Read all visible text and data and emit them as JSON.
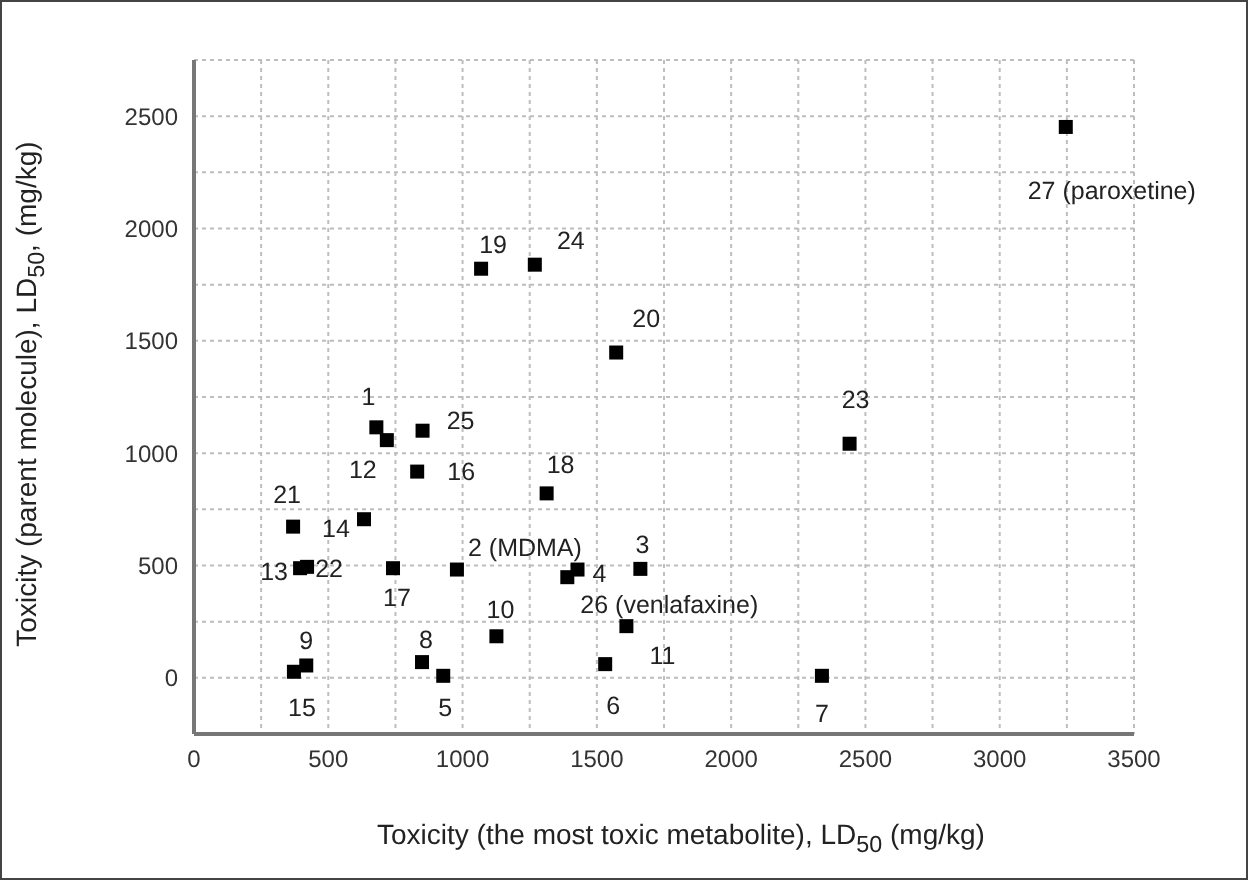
{
  "chart_data": {
    "type": "scatter",
    "xlabel": "Toxicity (the most toxic metabolite), LD$_{50}$ (mg/kg)",
    "ylabel": "Toxicity (parent molecule), LD$_{50}$, (mg/kg)",
    "x": [
      679,
      979,
      1662,
      1428,
      928,
      1531,
      2338,
      849,
      418,
      1126,
      1610,
      718,
      395,
      633,
      372,
      831,
      741,
      1313,
      1069,
      1572,
      369,
      421,
      2441,
      1269,
      851,
      1390,
      3246
    ],
    "series": [
      {
        "color": "#000000",
        "values": [
          1115,
          482,
          485,
          482,
          9,
          61,
          9,
          70,
          55,
          185,
          230,
          1058,
          488,
          706,
          27,
          918,
          488,
          821,
          1821,
          1448,
          673,
          494,
          1042,
          1839,
          1100,
          448,
          2452
        ]
      }
    ],
    "marker": "square",
    "grid": true,
    "legend": false,
    "xlim": [
      0,
      3500
    ],
    "ylim": [
      -250,
      2750
    ],
    "xticks": [
      0,
      {
        "value": 250,
        "label": null
      },
      500,
      {
        "value": 750,
        "label": null
      },
      1000,
      {
        "value": 1250,
        "label": null
      },
      1500,
      {
        "value": 1750,
        "label": null
      },
      2000,
      {
        "value": 2250,
        "label": null
      },
      2500,
      {
        "value": 2750,
        "label": null
      },
      3000,
      {
        "value": 3250,
        "label": null
      },
      3500
    ],
    "yticks": [
      0,
      {
        "value": 250,
        "label": null
      },
      500,
      {
        "value": 750,
        "label": null
      },
      1000,
      {
        "value": 1250,
        "label": null
      },
      1500,
      {
        "value": 1750,
        "label": null
      },
      2000,
      {
        "value": 2250,
        "label": null
      },
      2500
    ],
    "annotations": [
      {
        "text": "1",
        "x": 679,
        "y": 1115
      },
      {
        "text": "2 (MDMA)",
        "x": 979,
        "y": 482
      },
      {
        "text": "3",
        "x": 1662,
        "y": 485
      },
      {
        "text": "4",
        "x": 1428,
        "y": 482
      },
      {
        "text": "5",
        "x": 928,
        "y": 9
      },
      {
        "text": "6",
        "x": 1531,
        "y": 61
      },
      {
        "text": "7",
        "x": 2338,
        "y": 9
      },
      {
        "text": "8",
        "x": 849,
        "y": 70
      },
      {
        "text": "9",
        "x": 418,
        "y": 55
      },
      {
        "text": "10",
        "x": 1126,
        "y": 185
      },
      {
        "text": "11",
        "x": 1610,
        "y": 230
      },
      {
        "text": "12",
        "x": 718,
        "y": 1058
      },
      {
        "text": "13",
        "x": 395,
        "y": 488
      },
      {
        "text": "14",
        "x": 633,
        "y": 706
      },
      {
        "text": "15",
        "x": 372,
        "y": 27
      },
      {
        "text": "16",
        "x": 831,
        "y": 918
      },
      {
        "text": "17",
        "x": 741,
        "y": 488
      },
      {
        "text": "18",
        "x": 1313,
        "y": 821
      },
      {
        "text": "19",
        "x": 1069,
        "y": 1821
      },
      {
        "text": "20",
        "x": 1572,
        "y": 1448
      },
      {
        "text": "21",
        "x": 369,
        "y": 673
      },
      {
        "text": "22",
        "x": 421,
        "y": 494
      },
      {
        "text": "23",
        "x": 2441,
        "y": 1042
      },
      {
        "text": "24",
        "x": 1269,
        "y": 1839
      },
      {
        "text": "25",
        "x": 851,
        "y": 1100
      },
      {
        "text": "26 (venlafaxine)",
        "x": 1390,
        "y": 448
      },
      {
        "text": "27 (paroxetine)",
        "x": 3246,
        "y": 2452
      }
    ]
  }
}
